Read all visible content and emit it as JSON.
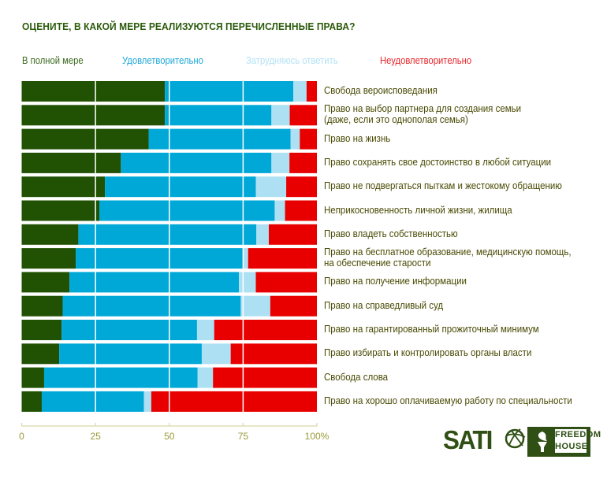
{
  "title": "ОЦЕНИТЕ, В КАКОЙ МЕРЕ РЕАЛИЗУЮТСЯ ПЕРЕЧИСЛЕННЫЕ ПРАВА?",
  "logos": {
    "sati": "SATI",
    "freedom_house_line1": "FREEDOM",
    "freedom_house_line2": "HOUSE"
  },
  "chart_data": {
    "type": "bar",
    "orientation": "horizontal",
    "stacked": true,
    "title": "ОЦЕНИТЕ, В КАКОЙ МЕРЕ РЕАЛИЗУЮТСЯ ПЕРЕЧИСЛЕННЫЕ ПРАВА?",
    "xlabel": "",
    "ylabel": "",
    "xlim": [
      0,
      100
    ],
    "x_ticks": [
      "0",
      "25",
      "50",
      "75",
      "100%"
    ],
    "x_tick_values": [
      0,
      25,
      50,
      75,
      100
    ],
    "grid": true,
    "legend_position": "top",
    "categories": [
      [
        "Свобода вероисповедания"
      ],
      [
        "Право на выбор партнера для создания семьи",
        "(даже, если это однополая семья)"
      ],
      [
        "Право на жизнь"
      ],
      [
        "Право сохранять свое достоинство в любой ситуации"
      ],
      [
        "Право не подвергаться пыткам и жестокому обращению"
      ],
      [
        "Неприкосновенность личной жизни, жилища"
      ],
      [
        "Право владеть собственностью"
      ],
      [
        "Право на бесплатное образование, медицинскую помощь,",
        "на обеспечение старости"
      ],
      [
        "Право на получение информации"
      ],
      [
        "Право на справедливый суд"
      ],
      [
        "Право на гарантированный прожиточный минимум"
      ],
      [
        "Право избирать и контролировать органы власти"
      ],
      [
        "Свобода слова"
      ],
      [
        "Право на хорошо оплачиваемую работу по специальности"
      ]
    ],
    "series": [
      {
        "name": "В полной мере",
        "color": "#215203",
        "values": [
          48.5,
          48.5,
          43.0,
          33.6,
          28.2,
          26.3,
          19.2,
          18.3,
          16.2,
          13.9,
          13.5,
          12.7,
          7.6,
          6.8
        ]
      },
      {
        "name": "Удовлетворительно",
        "color": "#00a8d8",
        "values": [
          43.5,
          36.1,
          48.1,
          51.0,
          51.1,
          59.4,
          60.3,
          56.9,
          57.4,
          60.3,
          45.9,
          48.3,
          52.0,
          34.6
        ]
      },
      {
        "name": "Затрудняюсь ответить",
        "color": "#aee0f4",
        "values": [
          4.5,
          6.2,
          3.1,
          6.1,
          10.3,
          3.5,
          4.2,
          1.5,
          5.7,
          10.0,
          5.8,
          9.8,
          5.2,
          2.5
        ]
      },
      {
        "name": "Неудовлетворительно",
        "color": "#e80000",
        "values": [
          3.5,
          9.2,
          5.8,
          9.3,
          10.4,
          10.8,
          16.3,
          23.3,
          20.7,
          15.8,
          34.8,
          29.2,
          35.2,
          56.1
        ]
      }
    ]
  }
}
